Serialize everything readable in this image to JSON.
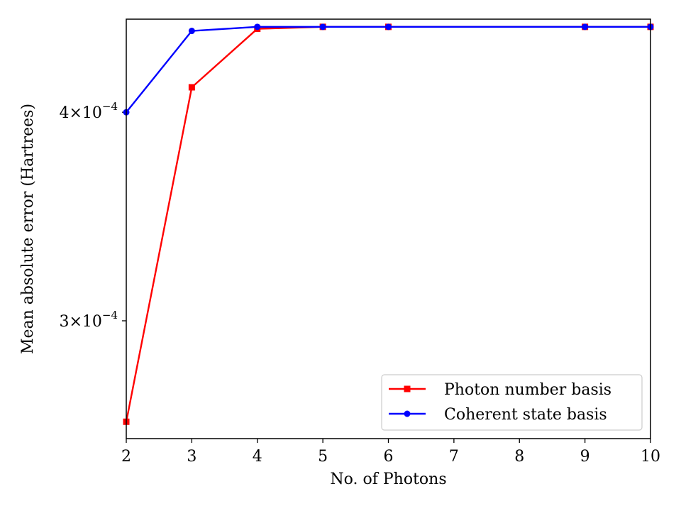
{
  "chart_data": {
    "type": "line",
    "title": "",
    "xlabel": "No. of Photons",
    "ylabel": "Mean absolute error (Hartrees)",
    "yscale": "log",
    "xlim": [
      2,
      10
    ],
    "ylim": [
      0.000255,
      0.0004548
    ],
    "grid": false,
    "legend_position": "lower-right",
    "xticks": [
      {
        "value": 2,
        "label": "2"
      },
      {
        "value": 3,
        "label": "3"
      },
      {
        "value": 4,
        "label": "4"
      },
      {
        "value": 5,
        "label": "5"
      },
      {
        "value": 6,
        "label": "6"
      },
      {
        "value": 7,
        "label": "7"
      },
      {
        "value": 8,
        "label": "8"
      },
      {
        "value": 9,
        "label": "9"
      },
      {
        "value": 10,
        "label": "10"
      }
    ],
    "yticks": [
      {
        "value": 0.0003,
        "mantissa": "3",
        "exponent": "−4"
      },
      {
        "value": 0.0004,
        "mantissa": "4",
        "exponent": "−4"
      }
    ],
    "series": [
      {
        "name": "Photon number basis",
        "color": "#ff0000",
        "marker": "square",
        "x": [
          2,
          3,
          4,
          5,
          6,
          9,
          10
        ],
        "y": [
          0.000261,
          0.000414,
          0.0004488,
          0.00045,
          0.00045,
          0.00045,
          0.00045
        ]
      },
      {
        "name": "Coherent state basis",
        "color": "#0000ff",
        "marker": "circle",
        "x": [
          2,
          3,
          4,
          5,
          6,
          9,
          10
        ],
        "y": [
          0.0004,
          0.0004475,
          0.00045,
          0.00045,
          0.00045,
          0.00045,
          0.00045
        ]
      }
    ]
  }
}
